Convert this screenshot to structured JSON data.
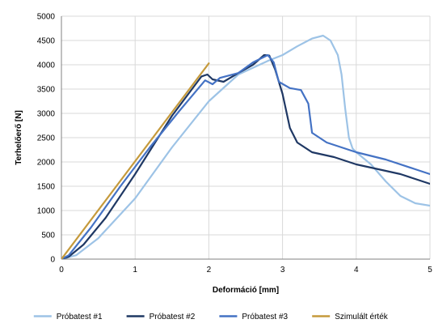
{
  "chart_data": {
    "type": "line",
    "title": "",
    "xlabel": "Deformáció [mm]",
    "ylabel": "Terhelőerő [N]",
    "xlim": [
      0,
      5
    ],
    "ylim": [
      0,
      5000
    ],
    "xticks": [
      0,
      1,
      2,
      3,
      4,
      5
    ],
    "yticks": [
      0,
      500,
      1000,
      1500,
      2000,
      2500,
      3000,
      3500,
      4000,
      4500,
      5000
    ],
    "grid": true,
    "legend_position": "bottom",
    "series": [
      {
        "name": "Próbatest #1",
        "color": "#9dc3e6",
        "x": [
          0,
          0.2,
          0.5,
          1.0,
          1.5,
          2.0,
          2.4,
          2.8,
          3.0,
          3.2,
          3.4,
          3.55,
          3.65,
          3.75,
          3.8,
          3.85,
          3.9,
          3.95,
          4.0,
          4.2,
          4.4,
          4.6,
          4.8,
          5.0
        ],
        "y": [
          0,
          80,
          430,
          1250,
          2300,
          3250,
          3800,
          4080,
          4200,
          4380,
          4540,
          4600,
          4500,
          4200,
          3800,
          3100,
          2500,
          2280,
          2200,
          1950,
          1600,
          1300,
          1150,
          1100
        ]
      },
      {
        "name": "Próbatest #2",
        "color": "#1f3864",
        "x": [
          0,
          0.1,
          0.3,
          0.6,
          1.0,
          1.5,
          1.9,
          1.98,
          2.05,
          2.2,
          2.4,
          2.6,
          2.75,
          2.82,
          2.9,
          3.0,
          3.1,
          3.2,
          3.4,
          3.7,
          4.0,
          4.3,
          4.6,
          5.0
        ],
        "y": [
          0,
          50,
          300,
          850,
          1750,
          2950,
          3760,
          3800,
          3700,
          3650,
          3830,
          4000,
          4200,
          4190,
          3900,
          3400,
          2700,
          2400,
          2200,
          2100,
          1950,
          1850,
          1750,
          1550
        ]
      },
      {
        "name": "Próbatest #3",
        "color": "#4472c4",
        "x": [
          0,
          0.1,
          0.4,
          0.8,
          1.2,
          1.6,
          1.95,
          2.05,
          2.15,
          2.4,
          2.6,
          2.8,
          2.88,
          2.95,
          3.1,
          3.25,
          3.35,
          3.4,
          3.6,
          4.0,
          4.4,
          4.8,
          5.0
        ],
        "y": [
          0,
          80,
          650,
          1500,
          2300,
          3050,
          3680,
          3600,
          3730,
          3830,
          4050,
          4200,
          4050,
          3650,
          3520,
          3480,
          3200,
          2600,
          2400,
          2200,
          2050,
          1850,
          1750
        ]
      },
      {
        "name": "Szimulált érték",
        "color": "#c59a3c",
        "x": [
          0,
          2.0
        ],
        "y": [
          0,
          4030
        ]
      }
    ]
  }
}
